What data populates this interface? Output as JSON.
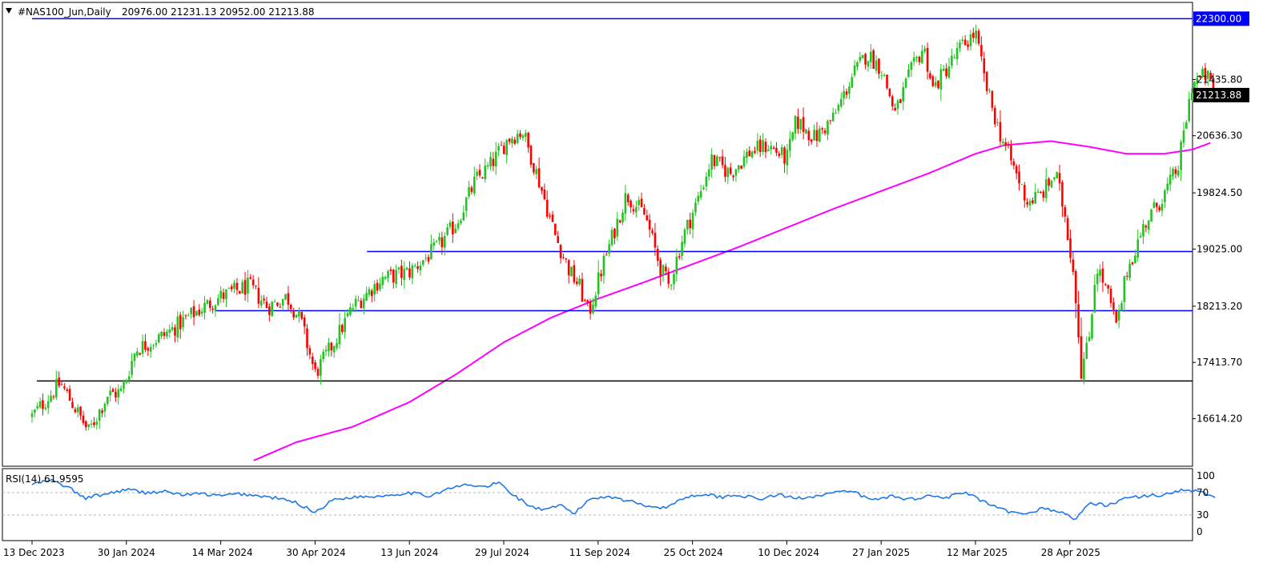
{
  "chart_data": {
    "type": "candlestick",
    "symbol_header": "#NAS100_Jun,Daily",
    "ohlc_header": "20976.00 21231.13 20952.00 21213.88",
    "last_price_label": "21213.88",
    "ylim": [
      15950,
      22520
    ],
    "price_ticks": [
      "21435.80",
      "20636.30",
      "19824.50",
      "19025.00",
      "18213.20",
      "17413.70",
      "16614.20"
    ],
    "date_labels": [
      "13 Dec 2023",
      "30 Jan 2024",
      "14 Mar 2024",
      "30 Apr 2024",
      "13 Jun 2024",
      "29 Jul 2024",
      "11 Sep 2024",
      "25 Oct 2024",
      "10 Dec 2024",
      "27 Jan 2025",
      "12 Mar 2025",
      "28 Apr 2025"
    ],
    "horizontal_lines": [
      {
        "price": 22300.0,
        "label": "22300.00",
        "color": "#0000ff",
        "start_date_index": 0
      },
      {
        "price": 18990.0,
        "label": "",
        "color": "#0000ff",
        "start_date_index": 3.55
      },
      {
        "price": 18150.0,
        "label": "",
        "color": "#0000ff",
        "start_date_index": 1.95
      },
      {
        "price": 17150.0,
        "label": "",
        "color": "#000000",
        "start_date_index": 0.05
      }
    ],
    "candle_colors": {
      "up": "#22c322",
      "down": "#ff0000"
    },
    "price_path": [
      [
        0.0,
        16650
      ],
      [
        0.3,
        17120
      ],
      [
        0.45,
        16780
      ],
      [
        0.6,
        16430
      ],
      [
        0.8,
        16950
      ],
      [
        0.95,
        17000
      ],
      [
        1.1,
        17600
      ],
      [
        1.4,
        17800
      ],
      [
        1.7,
        18100
      ],
      [
        2.0,
        18350
      ],
      [
        2.3,
        18500
      ],
      [
        2.5,
        18200
      ],
      [
        2.7,
        18350
      ],
      [
        2.85,
        18000
      ],
      [
        3.0,
        17250
      ],
      [
        3.2,
        17700
      ],
      [
        3.4,
        18200
      ],
      [
        3.7,
        18600
      ],
      [
        4.0,
        18700
      ],
      [
        4.3,
        19050
      ],
      [
        4.5,
        19400
      ],
      [
        4.7,
        20000
      ],
      [
        4.85,
        20200
      ],
      [
        5.05,
        20600
      ],
      [
        5.2,
        20700
      ],
      [
        5.35,
        20100
      ],
      [
        5.55,
        19200
      ],
      [
        5.7,
        18700
      ],
      [
        5.8,
        18500
      ],
      [
        5.9,
        18100
      ],
      [
        6.05,
        18800
      ],
      [
        6.3,
        19800
      ],
      [
        6.5,
        19500
      ],
      [
        6.65,
        18800
      ],
      [
        6.75,
        18500
      ],
      [
        6.9,
        19200
      ],
      [
        7.05,
        19700
      ],
      [
        7.2,
        20300
      ],
      [
        7.4,
        20100
      ],
      [
        7.6,
        20400
      ],
      [
        7.8,
        20500
      ],
      [
        8.0,
        20300
      ],
      [
        8.1,
        20850
      ],
      [
        8.3,
        20600
      ],
      [
        8.5,
        20900
      ],
      [
        8.7,
        21500
      ],
      [
        8.85,
        21800
      ],
      [
        9.0,
        21600
      ],
      [
        9.15,
        20950
      ],
      [
        9.3,
        21500
      ],
      [
        9.45,
        21900
      ],
      [
        9.55,
        21300
      ],
      [
        9.75,
        21700
      ],
      [
        9.85,
        21900
      ],
      [
        10.0,
        22100
      ],
      [
        10.1,
        21400
      ],
      [
        10.25,
        20700
      ],
      [
        10.4,
        20200
      ],
      [
        10.55,
        19700
      ],
      [
        10.7,
        19800
      ],
      [
        10.85,
        20100
      ],
      [
        10.95,
        19500
      ],
      [
        11.05,
        18600
      ],
      [
        11.12,
        17300
      ],
      [
        11.2,
        17700
      ],
      [
        11.28,
        18800
      ],
      [
        11.4,
        18400
      ],
      [
        11.5,
        17900
      ],
      [
        11.6,
        18700
      ],
      [
        11.8,
        19400
      ],
      [
        12.0,
        19800
      ],
      [
        12.15,
        20200
      ],
      [
        12.3,
        21400
      ],
      [
        12.45,
        21500
      ],
      [
        12.55,
        21213.88
      ]
    ],
    "ma_path": [
      [
        2.35,
        16020
      ],
      [
        2.8,
        16280
      ],
      [
        3.4,
        16500
      ],
      [
        4.0,
        16850
      ],
      [
        4.5,
        17250
      ],
      [
        5.0,
        17700
      ],
      [
        5.5,
        18050
      ],
      [
        6.0,
        18320
      ],
      [
        6.5,
        18560
      ],
      [
        7.0,
        18810
      ],
      [
        7.5,
        19060
      ],
      [
        8.0,
        19330
      ],
      [
        8.5,
        19600
      ],
      [
        9.0,
        19850
      ],
      [
        9.5,
        20100
      ],
      [
        10.0,
        20380
      ],
      [
        10.3,
        20500
      ],
      [
        10.8,
        20560
      ],
      [
        11.2,
        20480
      ],
      [
        11.6,
        20380
      ],
      [
        12.0,
        20380
      ],
      [
        12.3,
        20440
      ],
      [
        12.5,
        20540
      ]
    ],
    "ma_color": "#ff00ff",
    "rsi": {
      "label": "RSI(14) 61.9595",
      "levels": [
        "100",
        "70",
        "30",
        "0"
      ],
      "color": "#1e78e8",
      "path": [
        [
          0.0,
          85
        ],
        [
          0.2,
          92
        ],
        [
          0.4,
          78
        ],
        [
          0.55,
          60
        ],
        [
          0.8,
          68
        ],
        [
          1.0,
          76
        ],
        [
          1.2,
          70
        ],
        [
          1.4,
          72
        ],
        [
          1.6,
          66
        ],
        [
          1.8,
          68
        ],
        [
          2.0,
          64
        ],
        [
          2.2,
          68
        ],
        [
          2.4,
          64
        ],
        [
          2.6,
          60
        ],
        [
          2.8,
          52
        ],
        [
          3.0,
          35
        ],
        [
          3.2,
          58
        ],
        [
          3.4,
          62
        ],
        [
          3.7,
          64
        ],
        [
          4.0,
          70
        ],
        [
          4.2,
          64
        ],
        [
          4.4,
          76
        ],
        [
          4.6,
          84
        ],
        [
          4.8,
          80
        ],
        [
          4.95,
          88
        ],
        [
          5.1,
          66
        ],
        [
          5.3,
          44
        ],
        [
          5.45,
          38
        ],
        [
          5.6,
          48
        ],
        [
          5.75,
          32
        ],
        [
          5.9,
          58
        ],
        [
          6.1,
          64
        ],
        [
          6.3,
          56
        ],
        [
          6.5,
          48
        ],
        [
          6.7,
          42
        ],
        [
          6.9,
          60
        ],
        [
          7.1,
          68
        ],
        [
          7.3,
          62
        ],
        [
          7.5,
          66
        ],
        [
          7.7,
          58
        ],
        [
          7.9,
          66
        ],
        [
          8.1,
          60
        ],
        [
          8.3,
          64
        ],
        [
          8.5,
          70
        ],
        [
          8.7,
          72
        ],
        [
          8.9,
          56
        ],
        [
          9.1,
          64
        ],
        [
          9.3,
          58
        ],
        [
          9.5,
          64
        ],
        [
          9.7,
          62
        ],
        [
          9.9,
          70
        ],
        [
          10.1,
          52
        ],
        [
          10.3,
          38
        ],
        [
          10.5,
          30
        ],
        [
          10.7,
          42
        ],
        [
          10.9,
          36
        ],
        [
          11.05,
          22
        ],
        [
          11.2,
          50
        ],
        [
          11.4,
          48
        ],
        [
          11.6,
          60
        ],
        [
          11.8,
          64
        ],
        [
          12.0,
          66
        ],
        [
          12.2,
          76
        ],
        [
          12.4,
          70
        ],
        [
          12.55,
          62
        ]
      ]
    }
  }
}
